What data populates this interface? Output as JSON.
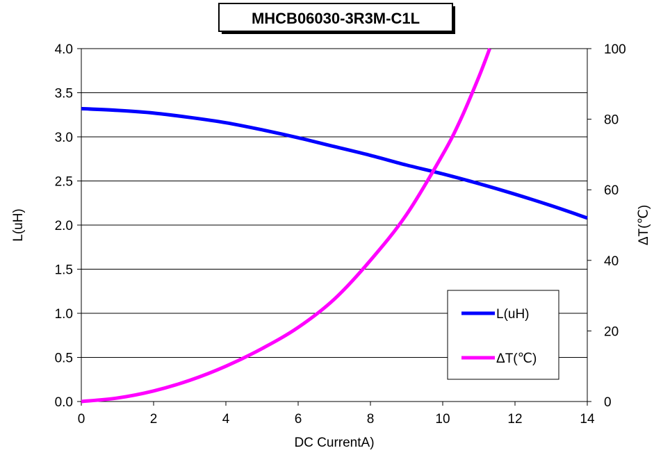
{
  "chart_data": {
    "type": "line",
    "title": "MHCB06030-3R3M-C1L",
    "xlabel": "DC CurrentA)",
    "ylabel_left": "L(uH)",
    "ylabel_right": "ΔT(℃)",
    "xlim": [
      0,
      14
    ],
    "ylim_left": [
      0,
      4.0
    ],
    "ylim_right": [
      0,
      100
    ],
    "x_ticks": [
      "0",
      "2",
      "4",
      "6",
      "8",
      "10",
      "12",
      "14"
    ],
    "y_left_ticks": [
      "0.0",
      "0.5",
      "1.0",
      "1.5",
      "2.0",
      "2.5",
      "3.0",
      "3.5",
      "4.0"
    ],
    "y_right_ticks": [
      "0",
      "20",
      "40",
      "60",
      "80",
      "100"
    ],
    "grid": "horizontal",
    "legend_position": "bottom-right",
    "series": [
      {
        "name": "L(uH)",
        "axis": "left",
        "color": "#0000ff",
        "x": [
          0,
          1,
          2,
          3,
          4,
          5,
          6,
          7,
          8,
          9,
          10,
          11,
          12,
          13,
          14
        ],
        "y": [
          3.32,
          3.3,
          3.27,
          3.22,
          3.16,
          3.08,
          2.99,
          2.89,
          2.79,
          2.68,
          2.58,
          2.47,
          2.35,
          2.22,
          2.08
        ]
      },
      {
        "name": "ΔT(℃)",
        "axis": "right",
        "color": "#ff00ff",
        "x": [
          0,
          1,
          2,
          3,
          4,
          5,
          6,
          7,
          8,
          9,
          10,
          10.5,
          11,
          11.3
        ],
        "y": [
          0,
          1,
          3,
          6,
          10,
          15,
          21,
          29,
          40,
          53,
          70,
          80,
          92,
          100
        ]
      }
    ]
  }
}
